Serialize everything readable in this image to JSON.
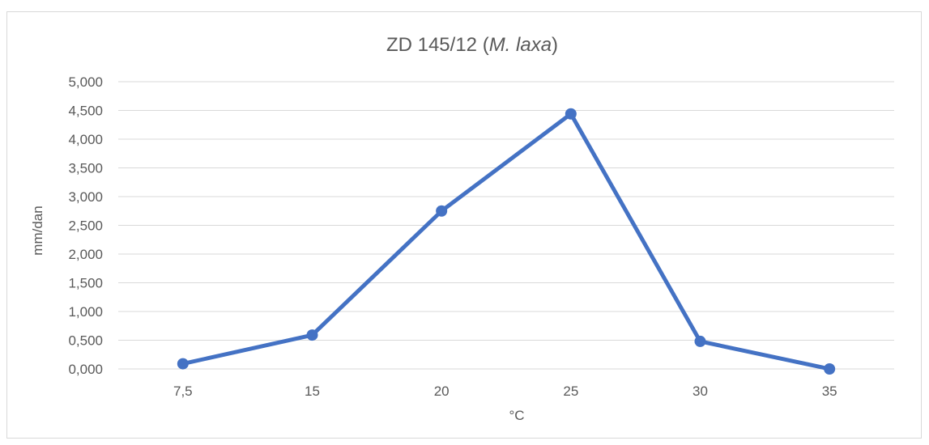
{
  "chart_data": {
    "type": "line",
    "title": {
      "prefix": "ZD 145/12 (",
      "italic": "M. laxa",
      "suffix": ")"
    },
    "xlabel": "°C",
    "ylabel": "mm/dan",
    "categories": [
      "7,5",
      "15",
      "20",
      "25",
      "30",
      "35"
    ],
    "series": [
      {
        "values": [
          0.09,
          0.59,
          2.75,
          4.44,
          0.48,
          0.0
        ],
        "color": "#4472c4"
      }
    ],
    "ylim": [
      0,
      5
    ],
    "yticks": [
      "0,000",
      "0,500",
      "1,000",
      "1,500",
      "2,000",
      "2,500",
      "3,000",
      "3,500",
      "4,000",
      "4,500",
      "5,000"
    ],
    "grid": true,
    "gridColor": "#d9d9d9",
    "legend": "none"
  }
}
